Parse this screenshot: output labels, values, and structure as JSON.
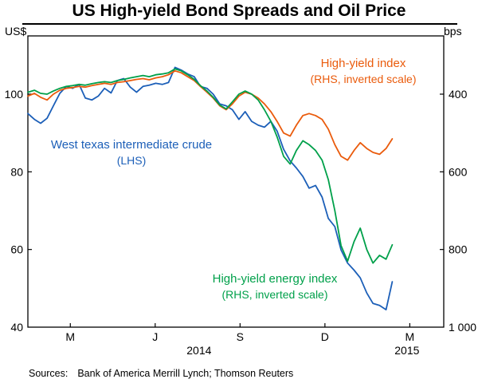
{
  "title": "US High-yield Bond Spreads and Oil Price",
  "footer": {
    "sources_label": "Sources:",
    "sources_text": "Bank of America Merrill Lynch; Thomson Reuters"
  },
  "annotations": {
    "hy_index_line1": "High-yield index",
    "hy_index_line2": "(RHS, inverted scale)",
    "wti_line1": "West texas intermediate crude",
    "wti_line2": "(LHS)",
    "hy_energy_line1": "High-yield energy index",
    "hy_energy_line2": "(RHS, inverted scale)"
  },
  "colors": {
    "wti": "#1c5fb8",
    "hy_index": "#ea5b0c",
    "hy_energy": "#00a04a",
    "axis": "#000000"
  },
  "chart_data": {
    "type": "line",
    "title": "US High-yield Bond Spreads and Oil Price",
    "x_unit": "months since Jan 2014 (weekly observations)",
    "xlim": [
      0.5,
      15.2
    ],
    "x_ticks": [
      {
        "pos": 2,
        "label": "M"
      },
      {
        "pos": 5,
        "label": "J"
      },
      {
        "pos": 8,
        "label": "S"
      },
      {
        "pos": 11,
        "label": "D"
      },
      {
        "pos": 14,
        "label": "M"
      }
    ],
    "year_labels": [
      {
        "pos": 6.55,
        "label": "2014"
      },
      {
        "pos": 13.9,
        "label": "2015"
      }
    ],
    "left_axis": {
      "unit": "US$",
      "lim": [
        40,
        115
      ],
      "ticks": [
        {
          "value": 40,
          "label": "40"
        },
        {
          "value": 60,
          "label": "60"
        },
        {
          "value": 80,
          "label": "80"
        },
        {
          "value": 100,
          "label": "100"
        }
      ]
    },
    "right_axis": {
      "unit": "bps",
      "inverted": true,
      "lim": [
        1000,
        250
      ],
      "ticks": [
        {
          "value": 400,
          "label": "400"
        },
        {
          "value": 600,
          "label": "600"
        },
        {
          "value": 800,
          "label": "800"
        },
        {
          "value": 1000,
          "label": "1 000"
        }
      ]
    },
    "x": [
      0.5,
      0.73,
      0.95,
      1.18,
      1.4,
      1.63,
      1.86,
      2.08,
      2.31,
      2.53,
      2.76,
      2.99,
      3.21,
      3.44,
      3.66,
      3.89,
      4.12,
      4.34,
      4.57,
      4.79,
      5.02,
      5.25,
      5.47,
      5.7,
      5.92,
      6.15,
      6.38,
      6.6,
      6.83,
      7.05,
      7.28,
      7.51,
      7.73,
      7.96,
      8.18,
      8.41,
      8.64,
      8.86,
      9.09,
      9.31,
      9.54,
      9.77,
      9.99,
      10.22,
      10.44,
      10.67,
      10.9,
      11.12,
      11.35,
      11.57,
      11.8,
      12.03,
      12.25,
      12.48,
      12.7,
      12.93,
      13.16,
      13.38
    ],
    "series": [
      {
        "name": "West texas intermediate crude",
        "axis": "left",
        "color_key": "wti",
        "values": [
          95.0,
          93.5,
          92.5,
          93.8,
          97.0,
          100.2,
          102.0,
          101.5,
          102.5,
          99.0,
          98.5,
          99.5,
          101.5,
          100.3,
          103.5,
          104.0,
          101.8,
          100.5,
          102.0,
          102.3,
          102.8,
          102.5,
          103.0,
          106.9,
          106.2,
          105.2,
          104.5,
          102.0,
          101.5,
          100.0,
          97.5,
          97.0,
          96.0,
          93.5,
          95.5,
          93.0,
          92.0,
          91.5,
          93.0,
          90.5,
          85.8,
          82.8,
          81.0,
          78.8,
          75.8,
          76.5,
          73.5,
          68.0,
          65.9,
          59.9,
          56.5,
          54.7,
          52.7,
          48.8,
          46.1,
          45.6,
          44.5,
          51.7
        ]
      },
      {
        "name": "High-yield index",
        "axis": "right",
        "color_key": "hy_index",
        "values": [
          405,
          398,
          408,
          415,
          400,
          390,
          385,
          383,
          380,
          382,
          378,
          375,
          372,
          375,
          370,
          368,
          365,
          362,
          360,
          363,
          358,
          355,
          350,
          340,
          345,
          355,
          365,
          380,
          395,
          410,
          430,
          440,
          425,
          405,
          395,
          400,
          410,
          425,
          445,
          470,
          500,
          508,
          480,
          455,
          450,
          455,
          465,
          490,
          530,
          560,
          570,
          545,
          525,
          540,
          550,
          555,
          540,
          515
        ]
      },
      {
        "name": "High-yield energy index",
        "axis": "right",
        "color_key": "hy_energy",
        "values": [
          395,
          390,
          398,
          400,
          392,
          385,
          380,
          378,
          375,
          377,
          373,
          370,
          368,
          370,
          365,
          362,
          358,
          355,
          352,
          355,
          350,
          348,
          345,
          335,
          340,
          350,
          362,
          378,
          392,
          408,
          428,
          438,
          420,
          400,
          392,
          400,
          415,
          440,
          470,
          510,
          560,
          580,
          545,
          520,
          530,
          545,
          570,
          620,
          700,
          790,
          830,
          780,
          745,
          800,
          835,
          815,
          825,
          788
        ]
      }
    ]
  }
}
